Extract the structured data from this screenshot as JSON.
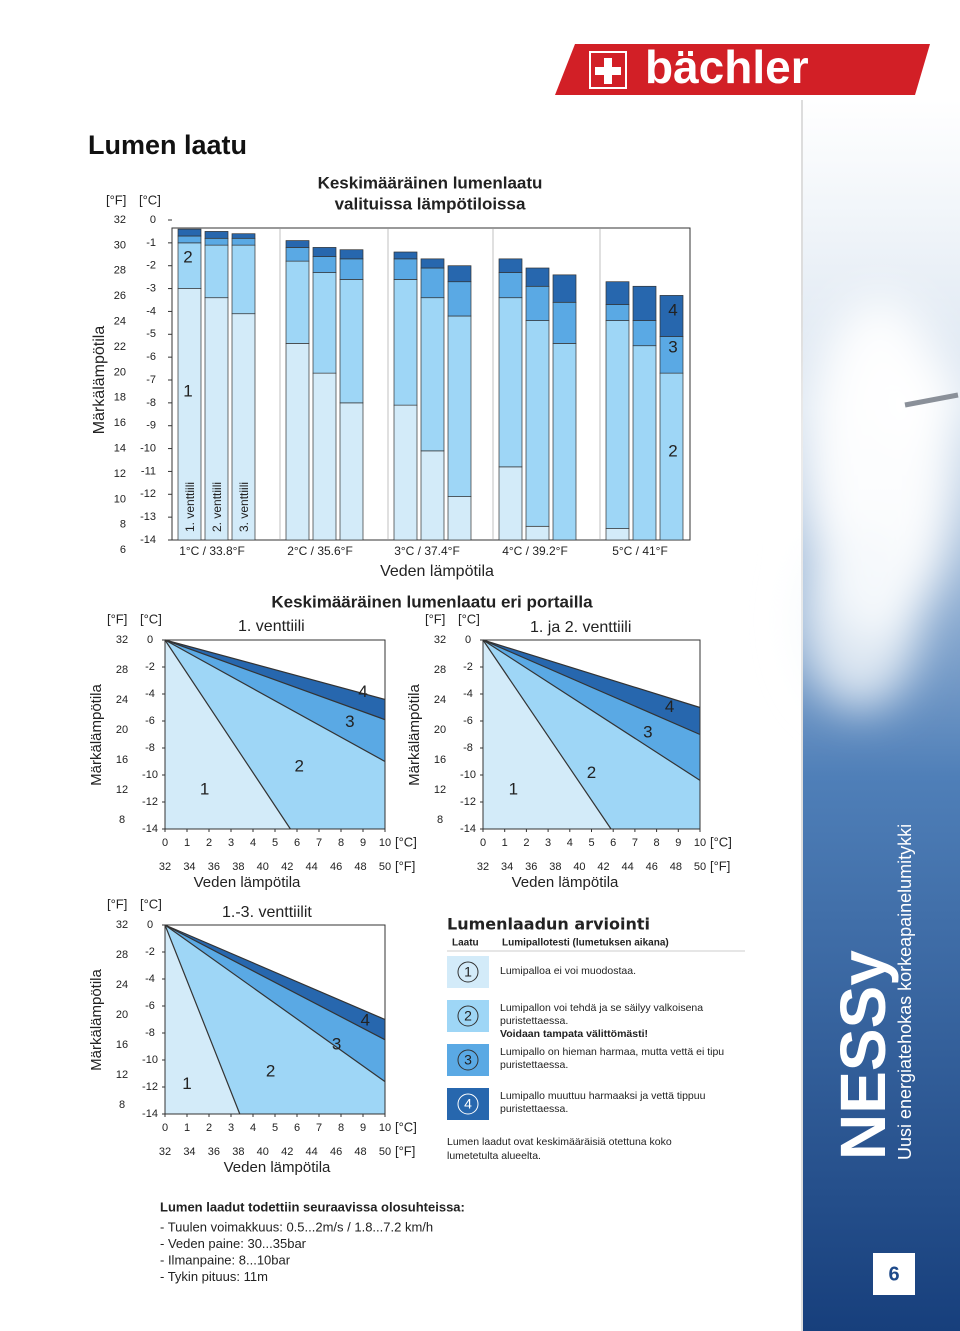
{
  "header": {
    "logo": "bächler"
  },
  "title": "Lumen laatu",
  "units": {
    "f": "[°F]",
    "c": "[°C]"
  },
  "quality_colors": [
    "#d3ebf9",
    "#9ed6f6",
    "#5aa9e4",
    "#2767ae"
  ],
  "bar_chart": {
    "title": [
      "Keskimääräinen lumenlaatu",
      "valituissa lämpötiloissa"
    ],
    "y_label": "Märkälämpötila",
    "x_label": "Veden lämpötila",
    "ylim": [
      -14,
      0
    ],
    "yticks_c": [
      0,
      -1,
      -2,
      -3,
      -4,
      -5,
      -6,
      -7,
      -8,
      -9,
      -10,
      -11,
      -12,
      -13,
      -14
    ],
    "yticks_f": [
      32,
      30,
      28,
      26,
      24,
      22,
      20,
      18,
      16,
      14,
      12,
      10,
      8,
      6
    ],
    "groups": [
      "1°C / 33.8°F",
      "2°C / 35.6°F",
      "3°C / 37.4°F",
      "4°C / 39.2°F",
      "5°C / 41°F"
    ],
    "valves": [
      "1. venttiili",
      "2. venttiili",
      "3. venttiili"
    ],
    "bars": [
      [
        [
          11.0,
          2.0,
          0.3,
          0.3
        ],
        [
          10.6,
          2.3,
          0.3,
          0.3
        ],
        [
          9.9,
          3.0,
          0.3,
          0.2
        ]
      ],
      [
        [
          8.6,
          3.6,
          0.6,
          0.3
        ],
        [
          7.3,
          4.4,
          0.7,
          0.4
        ],
        [
          6.0,
          5.4,
          0.9,
          0.4
        ]
      ],
      [
        [
          5.9,
          5.5,
          0.9,
          0.3
        ],
        [
          3.9,
          6.7,
          1.3,
          0.4
        ],
        [
          1.9,
          7.9,
          1.5,
          0.7
        ]
      ],
      [
        [
          3.2,
          7.4,
          1.1,
          0.6
        ],
        [
          0.6,
          9.0,
          1.5,
          0.8
        ],
        [
          0,
          8.6,
          1.8,
          1.2
        ]
      ],
      [
        [
          0.5,
          9.1,
          0.7,
          1.0
        ],
        [
          0,
          8.5,
          1.1,
          1.5
        ],
        [
          0,
          7.3,
          1.6,
          1.8
        ]
      ]
    ],
    "labels": [
      "2",
      "1",
      "4",
      "3",
      "2"
    ]
  },
  "stages": {
    "title": "Keskimääräinen lumenlaatu eri portailla",
    "y_label": "Märkälämpötila",
    "x_label": "Veden lämpötila",
    "xlim": [
      0,
      10
    ],
    "ylim": [
      -14,
      0
    ],
    "xticks_c": [
      0,
      1,
      2,
      3,
      4,
      5,
      6,
      7,
      8,
      9,
      10
    ],
    "xticks_f": [
      32,
      34,
      36,
      38,
      40,
      42,
      44,
      46,
      48,
      50
    ],
    "yticks_c": [
      0,
      -2,
      -4,
      -6,
      -8,
      -10,
      -12,
      -14
    ],
    "yticks_f": [
      32,
      28,
      24,
      20,
      16,
      12,
      8
    ],
    "charts": [
      {
        "title": "1. venttiili",
        "lines": [
          [
            5.7,
            -14
          ],
          [
            10,
            -9.0
          ],
          [
            10,
            -5.9
          ],
          [
            10,
            -4.4
          ]
        ],
        "labels": [
          "1",
          "2",
          "3",
          "4"
        ]
      },
      {
        "title": "1. ja 2. venttiili",
        "lines": [
          [
            5.9,
            -14
          ],
          [
            10,
            -10.4
          ],
          [
            10,
            -7.0
          ],
          [
            10,
            -5.0
          ]
        ],
        "labels": [
          "1",
          "2",
          "3",
          "4"
        ]
      },
      {
        "title": "1.-3. venttiilit",
        "lines": [
          [
            3.4,
            -14
          ],
          [
            10,
            -11.6
          ],
          [
            10,
            -8.5
          ],
          [
            10,
            -7.0
          ]
        ],
        "labels": [
          "1",
          "2",
          "3",
          "4"
        ]
      }
    ]
  },
  "assessment": {
    "title": "Lumenlaadun arviointi",
    "col1": "Laatu",
    "col2": "Lumipallotesti (lumetuksen aikana)",
    "rows": [
      {
        "quality": "1",
        "text": [
          "Lumipalloa ei voi muodostaa."
        ]
      },
      {
        "quality": "2",
        "text": [
          "Lumipallon voi tehdä ja se säilyy valkoisena",
          "puristettaessa."
        ],
        "emphasis": "Voidaan tampata välittömästi!"
      },
      {
        "quality": "3",
        "text": [
          "Lumipallo on hieman harmaa, mutta vettä ei tipu",
          "puristettaessa."
        ]
      },
      {
        "quality": "4",
        "text": [
          "Lumipallo muuttuu harmaaksi ja vettä tippuu",
          "puristettaessa."
        ]
      }
    ],
    "note": [
      "Lumen laadut ovat keskimääräisiä otettuna koko",
      "lumetetulta alueelta."
    ]
  },
  "conditions": {
    "title": "Lumen laadut todettiin seuraavissa olosuhteissa:",
    "items": [
      "- Tuulen voimakkuus: 0.5...2m/s / 1.8...7.2 km/h",
      "- Veden paine: 30...35bar",
      "- Ilmanpaine: 8...10bar",
      "- Tykin pituus: 11m"
    ]
  },
  "side": {
    "brand": "NESSy",
    "tagline": "Uusi energiatehokas korkeapainelumitykki",
    "page": "6"
  }
}
